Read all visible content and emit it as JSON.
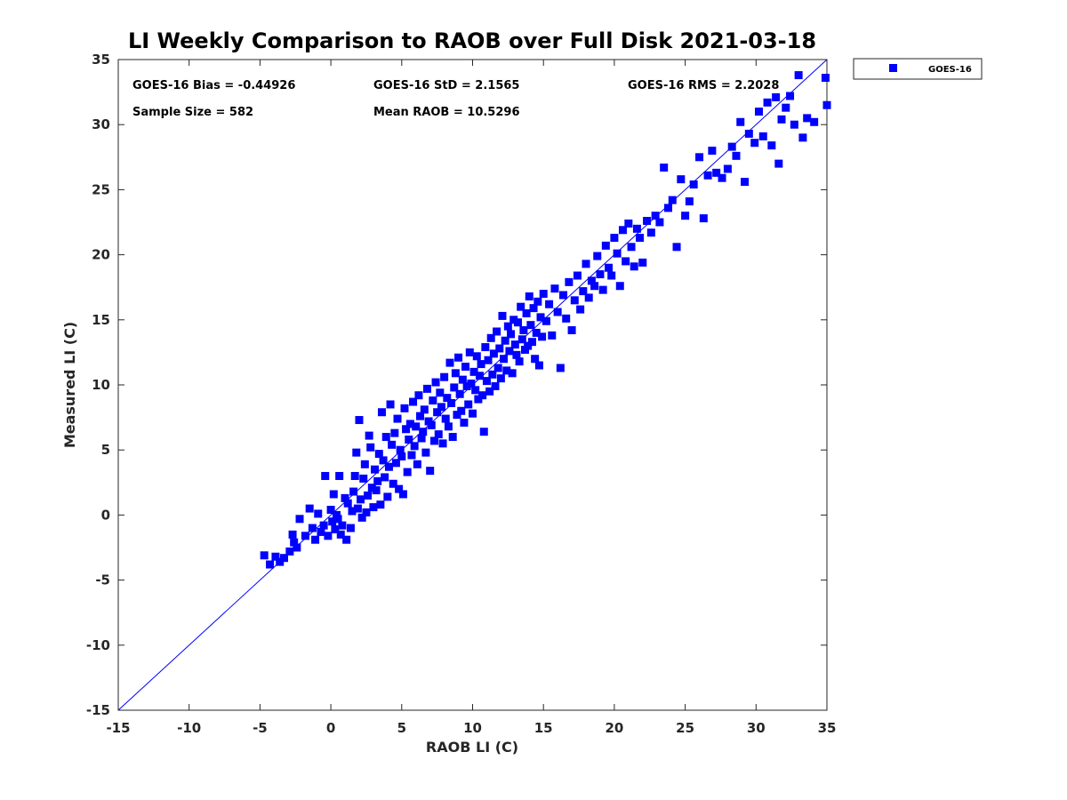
{
  "chart_data": {
    "type": "scatter",
    "title": "LI Weekly Comparison to RAOB over Full Disk 2021-03-18",
    "xlabel": "RAOB LI (C)",
    "ylabel": "Measured LI (C)",
    "xlim": [
      -15,
      35
    ],
    "ylim": [
      -15,
      35
    ],
    "xticks": [
      -15,
      -10,
      -5,
      0,
      5,
      10,
      15,
      20,
      25,
      30,
      35
    ],
    "yticks": [
      -15,
      -10,
      -5,
      0,
      5,
      10,
      15,
      20,
      25,
      30,
      35
    ],
    "xtick_labels": [
      "-15",
      "-10",
      "-5",
      "0",
      "5",
      "10",
      "15",
      "20",
      "25",
      "30",
      "35"
    ],
    "ytick_labels": [
      "-15",
      "-10",
      "-5",
      "0",
      "5",
      "10",
      "15",
      "20",
      "25",
      "30",
      "35"
    ],
    "grid": false,
    "reference_line": {
      "type": "one-to-one",
      "from": [
        -15,
        -15
      ],
      "to": [
        35,
        35
      ],
      "color": "#0000ff"
    },
    "stats": {
      "bias": "GOES-16 Bias = -0.44926",
      "std": "GOES-16 StD = 2.1565",
      "rms": "GOES-16 RMS = 2.2028",
      "sample_size": "Sample Size = 582",
      "mean_raob": "Mean RAOB = 10.5296"
    },
    "legend": {
      "location": "top-right-outside",
      "entries": [
        "GOES-16"
      ]
    },
    "series": [
      {
        "name": "GOES-16",
        "color": "#0000ff",
        "marker": "square",
        "points": [
          [
            -4.7,
            -3.1
          ],
          [
            -4.3,
            -3.8
          ],
          [
            -3.9,
            -3.2
          ],
          [
            -3.6,
            -3.6
          ],
          [
            -3.3,
            -3.3
          ],
          [
            -2.9,
            -2.8
          ],
          [
            -2.7,
            -1.5
          ],
          [
            -2.6,
            -2.1
          ],
          [
            -2.4,
            -2.5
          ],
          [
            -2.2,
            -0.3
          ],
          [
            -1.8,
            -1.6
          ],
          [
            -1.5,
            0.5
          ],
          [
            -1.3,
            -1.0
          ],
          [
            -1.1,
            -1.9
          ],
          [
            -0.9,
            0.1
          ],
          [
            -0.7,
            -1.3
          ],
          [
            -0.5,
            -0.8
          ],
          [
            -0.4,
            3.0
          ],
          [
            -0.2,
            -1.6
          ],
          [
            0.0,
            0.4
          ],
          [
            0.1,
            -0.5
          ],
          [
            0.2,
            1.6
          ],
          [
            0.3,
            -1.1
          ],
          [
            0.4,
            0.0
          ],
          [
            0.5,
            -0.3
          ],
          [
            0.6,
            3.0
          ],
          [
            0.7,
            -1.5
          ],
          [
            0.8,
            -0.8
          ],
          [
            1.0,
            1.3
          ],
          [
            1.1,
            -1.9
          ],
          [
            1.2,
            0.9
          ],
          [
            1.4,
            -1.0
          ],
          [
            1.5,
            0.3
          ],
          [
            1.6,
            1.8
          ],
          [
            1.7,
            3.0
          ],
          [
            1.8,
            4.8
          ],
          [
            1.9,
            0.5
          ],
          [
            2.0,
            7.3
          ],
          [
            2.1,
            1.2
          ],
          [
            2.2,
            -0.2
          ],
          [
            2.3,
            2.8
          ],
          [
            2.4,
            3.9
          ],
          [
            2.5,
            0.2
          ],
          [
            2.6,
            1.5
          ],
          [
            2.7,
            6.1
          ],
          [
            2.8,
            5.2
          ],
          [
            2.9,
            2.1
          ],
          [
            3.0,
            0.6
          ],
          [
            3.1,
            3.5
          ],
          [
            3.2,
            1.9
          ],
          [
            3.3,
            2.6
          ],
          [
            3.4,
            4.7
          ],
          [
            3.5,
            0.8
          ],
          [
            3.6,
            7.9
          ],
          [
            3.7,
            4.2
          ],
          [
            3.8,
            2.9
          ],
          [
            3.9,
            6.0
          ],
          [
            4.0,
            1.4
          ],
          [
            4.1,
            3.7
          ],
          [
            4.2,
            8.5
          ],
          [
            4.3,
            5.4
          ],
          [
            4.4,
            2.4
          ],
          [
            4.5,
            6.3
          ],
          [
            4.6,
            4.0
          ],
          [
            4.7,
            7.4
          ],
          [
            4.8,
            2.0
          ],
          [
            4.9,
            5.0
          ],
          [
            5.0,
            4.5
          ],
          [
            5.1,
            1.6
          ],
          [
            5.2,
            8.2
          ],
          [
            5.3,
            6.6
          ],
          [
            5.4,
            3.3
          ],
          [
            5.5,
            5.8
          ],
          [
            5.6,
            7.0
          ],
          [
            5.7,
            4.6
          ],
          [
            5.8,
            8.7
          ],
          [
            5.9,
            5.3
          ],
          [
            6.0,
            6.8
          ],
          [
            6.1,
            3.9
          ],
          [
            6.2,
            9.2
          ],
          [
            6.3,
            7.6
          ],
          [
            6.4,
            5.9
          ],
          [
            6.5,
            6.4
          ],
          [
            6.6,
            8.1
          ],
          [
            6.7,
            4.8
          ],
          [
            6.8,
            9.7
          ],
          [
            6.9,
            7.2
          ],
          [
            7.0,
            3.4
          ],
          [
            7.1,
            6.9
          ],
          [
            7.2,
            8.8
          ],
          [
            7.3,
            5.7
          ],
          [
            7.4,
            10.2
          ],
          [
            7.5,
            7.9
          ],
          [
            7.6,
            6.2
          ],
          [
            7.7,
            9.4
          ],
          [
            7.8,
            8.3
          ],
          [
            7.9,
            5.5
          ],
          [
            8.0,
            10.6
          ],
          [
            8.1,
            7.4
          ],
          [
            8.2,
            9.0
          ],
          [
            8.3,
            6.8
          ],
          [
            8.4,
            11.7
          ],
          [
            8.5,
            8.6
          ],
          [
            8.6,
            6.0
          ],
          [
            8.7,
            9.8
          ],
          [
            8.8,
            10.9
          ],
          [
            8.9,
            7.7
          ],
          [
            9.0,
            12.1
          ],
          [
            9.1,
            9.3
          ],
          [
            9.2,
            8.0
          ],
          [
            9.3,
            10.4
          ],
          [
            9.4,
            7.1
          ],
          [
            9.5,
            11.4
          ],
          [
            9.6,
            9.9
          ],
          [
            9.7,
            8.5
          ],
          [
            9.8,
            12.5
          ],
          [
            9.9,
            10.1
          ],
          [
            10.0,
            7.8
          ],
          [
            10.1,
            11.0
          ],
          [
            10.2,
            9.6
          ],
          [
            10.3,
            12.2
          ],
          [
            10.4,
            8.9
          ],
          [
            10.5,
            10.7
          ],
          [
            10.6,
            11.6
          ],
          [
            10.7,
            9.2
          ],
          [
            10.8,
            6.4
          ],
          [
            10.9,
            12.9
          ],
          [
            11.0,
            10.3
          ],
          [
            11.1,
            11.9
          ],
          [
            11.2,
            9.5
          ],
          [
            11.3,
            13.6
          ],
          [
            11.4,
            10.8
          ],
          [
            11.5,
            12.4
          ],
          [
            11.6,
            9.9
          ],
          [
            11.7,
            14.1
          ],
          [
            11.8,
            11.3
          ],
          [
            11.9,
            12.8
          ],
          [
            12.0,
            10.5
          ],
          [
            12.1,
            15.3
          ],
          [
            12.2,
            12.0
          ],
          [
            12.3,
            13.4
          ],
          [
            12.4,
            11.1
          ],
          [
            12.5,
            14.5
          ],
          [
            12.6,
            12.6
          ],
          [
            12.7,
            13.9
          ],
          [
            12.8,
            10.9
          ],
          [
            12.9,
            15.0
          ],
          [
            13.0,
            13.1
          ],
          [
            13.1,
            12.3
          ],
          [
            13.2,
            14.8
          ],
          [
            13.3,
            11.8
          ],
          [
            13.4,
            16.0
          ],
          [
            13.5,
            13.5
          ],
          [
            13.6,
            14.2
          ],
          [
            13.7,
            12.7
          ],
          [
            13.8,
            15.5
          ],
          [
            13.9,
            13.0
          ],
          [
            14.0,
            16.8
          ],
          [
            14.1,
            14.6
          ],
          [
            14.2,
            13.3
          ],
          [
            14.3,
            15.9
          ],
          [
            14.4,
            12.0
          ],
          [
            14.5,
            14.0
          ],
          [
            14.6,
            16.4
          ],
          [
            14.7,
            11.5
          ],
          [
            14.8,
            15.2
          ],
          [
            14.9,
            13.7
          ],
          [
            15.0,
            17.0
          ],
          [
            15.2,
            14.9
          ],
          [
            15.4,
            16.2
          ],
          [
            15.6,
            13.8
          ],
          [
            15.8,
            17.4
          ],
          [
            16.0,
            15.6
          ],
          [
            16.2,
            11.3
          ],
          [
            16.4,
            16.9
          ],
          [
            16.6,
            15.1
          ],
          [
            16.8,
            17.9
          ],
          [
            17.0,
            14.2
          ],
          [
            17.2,
            16.5
          ],
          [
            17.4,
            18.4
          ],
          [
            17.6,
            15.8
          ],
          [
            17.8,
            17.2
          ],
          [
            18.0,
            19.3
          ],
          [
            18.2,
            16.7
          ],
          [
            18.4,
            18.0
          ],
          [
            18.6,
            17.6
          ],
          [
            18.8,
            19.9
          ],
          [
            19.0,
            18.5
          ],
          [
            19.2,
            17.3
          ],
          [
            19.4,
            20.7
          ],
          [
            19.6,
            19.0
          ],
          [
            19.8,
            18.4
          ],
          [
            20.0,
            21.3
          ],
          [
            20.2,
            20.1
          ],
          [
            20.4,
            17.6
          ],
          [
            20.6,
            21.9
          ],
          [
            20.8,
            19.5
          ],
          [
            21.0,
            22.4
          ],
          [
            21.2,
            20.6
          ],
          [
            21.4,
            19.1
          ],
          [
            21.6,
            22.0
          ],
          [
            21.8,
            21.3
          ],
          [
            22.0,
            19.4
          ],
          [
            22.3,
            22.6
          ],
          [
            22.6,
            21.7
          ],
          [
            22.9,
            23.0
          ],
          [
            23.2,
            22.5
          ],
          [
            23.5,
            26.7
          ],
          [
            23.8,
            23.6
          ],
          [
            24.1,
            24.2
          ],
          [
            24.4,
            20.6
          ],
          [
            24.7,
            25.8
          ],
          [
            25.0,
            23.0
          ],
          [
            25.3,
            24.1
          ],
          [
            25.6,
            25.4
          ],
          [
            26.0,
            27.5
          ],
          [
            26.3,
            22.8
          ],
          [
            26.6,
            26.1
          ],
          [
            26.9,
            28.0
          ],
          [
            27.2,
            26.3
          ],
          [
            27.6,
            25.9
          ],
          [
            28.0,
            26.6
          ],
          [
            28.3,
            28.3
          ],
          [
            28.6,
            27.6
          ],
          [
            28.9,
            30.2
          ],
          [
            29.2,
            25.6
          ],
          [
            29.5,
            29.3
          ],
          [
            29.9,
            28.6
          ],
          [
            30.2,
            31.0
          ],
          [
            30.5,
            29.1
          ],
          [
            30.8,
            31.7
          ],
          [
            31.1,
            28.4
          ],
          [
            31.4,
            32.1
          ],
          [
            31.6,
            27.0
          ],
          [
            31.8,
            30.4
          ],
          [
            32.1,
            31.3
          ],
          [
            32.4,
            32.2
          ],
          [
            32.7,
            30.0
          ],
          [
            33.0,
            33.8
          ],
          [
            33.3,
            29.0
          ],
          [
            33.6,
            30.5
          ],
          [
            34.1,
            30.2
          ],
          [
            34.9,
            33.6
          ],
          [
            35.0,
            31.5
          ]
        ]
      }
    ]
  }
}
